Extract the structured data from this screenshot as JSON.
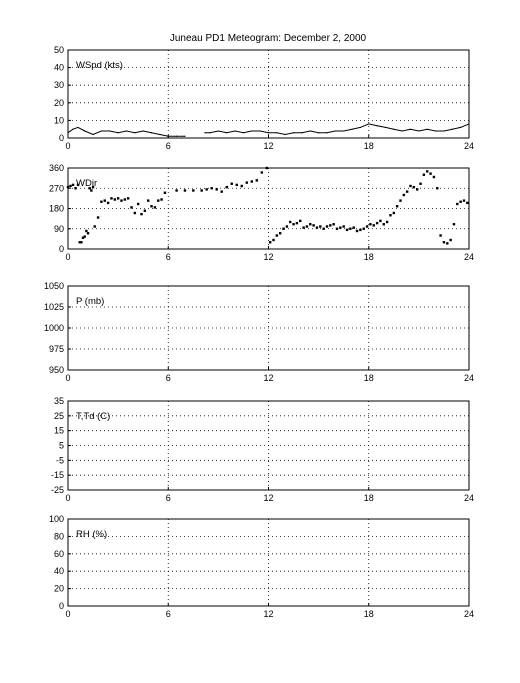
{
  "figure_title": "Juneau PD1 Meteogram:  December  2, 2000",
  "chart_data": [
    {
      "type": "line",
      "label": "WSpd (kts)",
      "x_ticks": [
        "0",
        "6",
        "12",
        "18",
        "24"
      ],
      "y_ticks": [
        "0",
        "10",
        "20",
        "30",
        "40",
        "50"
      ],
      "xlim": [
        0,
        24
      ],
      "ylim": [
        0,
        50
      ],
      "grid": true,
      "series": [
        {
          "x": [
            0,
            0.3,
            0.6,
            1,
            1.5,
            2,
            2.5,
            3,
            3.5,
            4,
            4.5,
            5,
            5.5,
            6,
            6.5,
            7,
            null,
            8.2,
            8.5,
            9,
            9.5,
            10,
            10.5,
            11,
            11.5,
            12,
            12.5,
            13,
            13.5,
            14,
            14.5,
            15,
            15.5,
            16,
            16.5,
            17,
            17.5,
            18,
            18.5,
            19,
            19.5,
            20,
            20.5,
            21,
            21.5,
            22,
            22.5,
            23,
            23.5,
            24
          ],
          "y": [
            3,
            5,
            6,
            4,
            2,
            4,
            4,
            3,
            4,
            3,
            4,
            3,
            2,
            1,
            1,
            1,
            null,
            3,
            3,
            4,
            3,
            4,
            3,
            4,
            4,
            3,
            3,
            2,
            3,
            3,
            4,
            3,
            3,
            4,
            4,
            5,
            6,
            8,
            7,
            6,
            5,
            4,
            5,
            4,
            5,
            4,
            4,
            5,
            6,
            8
          ]
        }
      ]
    },
    {
      "type": "scatter",
      "label": "WDir",
      "x_ticks": [
        "0",
        "6",
        "12",
        "18",
        "24"
      ],
      "y_ticks": [
        "0",
        "90",
        "180",
        "270",
        "360"
      ],
      "xlim": [
        0,
        24
      ],
      "ylim": [
        0,
        360
      ],
      "grid": true,
      "series": [
        {
          "x": [
            0,
            0.15,
            0.3,
            0.45,
            0.6,
            0.7,
            0.8,
            0.9,
            1.0,
            1.1,
            1.2,
            1.3,
            1.4,
            1.5,
            1.6,
            1.8,
            2.0,
            2.2,
            2.4,
            2.6,
            2.8,
            3.0,
            3.2,
            3.4,
            3.6,
            3.8,
            4.0,
            4.2,
            4.4,
            4.6,
            4.8,
            5.0,
            5.2,
            5.4,
            5.6,
            5.8,
            6.5,
            7.0,
            7.5,
            8.0,
            8.3,
            8.6,
            8.9,
            9.2,
            9.5,
            9.8,
            10.1,
            10.4,
            10.7,
            11.0,
            11.3,
            11.6,
            11.9,
            12.1,
            12.3,
            12.5,
            12.7,
            12.9,
            13.1,
            13.3,
            13.5,
            13.7,
            13.9,
            14.1,
            14.3,
            14.5,
            14.7,
            14.9,
            15.1,
            15.3,
            15.5,
            15.7,
            15.9,
            16.1,
            16.3,
            16.5,
            16.7,
            16.9,
            17.1,
            17.3,
            17.5,
            17.7,
            17.9,
            18.1,
            18.3,
            18.5,
            18.7,
            18.9,
            19.1,
            19.3,
            19.5,
            19.7,
            19.9,
            20.1,
            20.3,
            20.5,
            20.7,
            20.9,
            21.1,
            21.3,
            21.5,
            21.7,
            21.9,
            22.1,
            22.3,
            22.5,
            22.7,
            22.9,
            23.1,
            23.3,
            23.5,
            23.7,
            23.9
          ],
          "y": [
            275,
            280,
            285,
            270,
            285,
            30,
            30,
            50,
            55,
            80,
            70,
            270,
            260,
            275,
            100,
            140,
            210,
            215,
            205,
            225,
            220,
            225,
            215,
            220,
            225,
            185,
            160,
            200,
            155,
            170,
            215,
            190,
            185,
            215,
            220,
            250,
            260,
            260,
            260,
            260,
            265,
            270,
            265,
            255,
            275,
            290,
            285,
            280,
            295,
            300,
            305,
            340,
            360,
            30,
            40,
            60,
            70,
            90,
            100,
            120,
            110,
            115,
            125,
            95,
            100,
            110,
            105,
            95,
            100,
            90,
            100,
            105,
            110,
            90,
            95,
            100,
            85,
            90,
            95,
            80,
            85,
            90,
            100,
            110,
            105,
            115,
            125,
            110,
            120,
            150,
            160,
            190,
            215,
            240,
            255,
            280,
            275,
            265,
            290,
            330,
            345,
            335,
            320,
            270,
            60,
            30,
            25,
            40,
            110,
            200,
            210,
            215,
            205
          ]
        }
      ]
    },
    {
      "type": "line",
      "label": "P (mb)",
      "x_ticks": [
        "0",
        "6",
        "12",
        "18",
        "24"
      ],
      "y_ticks": [
        "950",
        "975",
        "1000",
        "1025",
        "1050"
      ],
      "xlim": [
        0,
        24
      ],
      "ylim": [
        950,
        1050
      ],
      "grid": true,
      "series": []
    },
    {
      "type": "line",
      "label": "T,Td (C)",
      "x_ticks": [
        "0",
        "6",
        "12",
        "18",
        "24"
      ],
      "y_ticks": [
        "-25",
        "-15",
        "-5",
        "5",
        "15",
        "25",
        "35"
      ],
      "xlim": [
        0,
        24
      ],
      "ylim": [
        -25,
        35
      ],
      "grid": true,
      "series": []
    },
    {
      "type": "line",
      "label": "RH (%)",
      "x_ticks": [
        "0",
        "6",
        "12",
        "18",
        "24"
      ],
      "y_ticks": [
        "0",
        "20",
        "40",
        "60",
        "80",
        "100"
      ],
      "xlim": [
        0,
        24
      ],
      "ylim": [
        0,
        100
      ],
      "grid": true,
      "series": []
    }
  ]
}
